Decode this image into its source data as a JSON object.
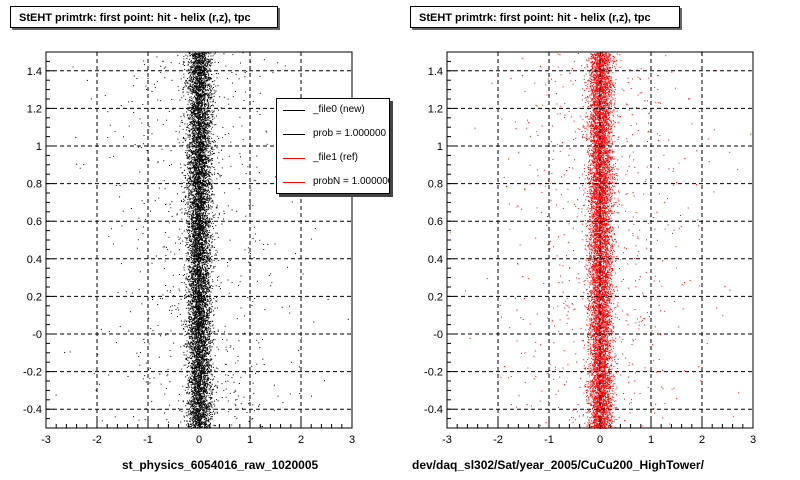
{
  "colors": {
    "new": "#000000",
    "ref": "#ff0000",
    "grid": "#000000"
  },
  "chart_data": [
    {
      "type": "scatter",
      "title": "StEHT primtrk: first point: hit - helix (r,z), tpc",
      "xlabel": "st_physics_6054016_raw_1020005",
      "ylabel": "",
      "xlim": [
        -3,
        3
      ],
      "ylim": [
        -0.5,
        1.5
      ],
      "x_ticks": [
        "-3",
        "-2",
        "-1",
        "0",
        "1",
        "2",
        "3"
      ],
      "y_ticks": [
        "-0.4",
        "-0.2",
        "-0",
        "0.2",
        "0.4",
        "0.6",
        "0.8",
        "1",
        "1.2",
        "1.4"
      ],
      "grid": true,
      "marker_color": "#000000",
      "distribution": {
        "x_center": 0.0,
        "core_sigma": 0.12,
        "tail_sigma": 1.0,
        "y_uniform": [
          -0.5,
          1.5
        ]
      },
      "legend": {
        "placement": "top-right",
        "entries": [
          {
            "label": "_file0 (new)",
            "color": "#000000"
          },
          {
            "label": "prob = 1.000000",
            "color": "#000000"
          },
          {
            "label": "_file1 (ref)",
            "color": "#ff0000"
          },
          {
            "label": "probN = 1.000000",
            "color": "#ff0000"
          }
        ]
      }
    },
    {
      "type": "scatter",
      "title": "StEHT primtrk: first point: hit - helix (r,z), tpc",
      "xlabel": "dev/daq_sl302/Sat/year_2005/CuCu200_HighTower/",
      "ylabel": "",
      "xlim": [
        -3,
        3
      ],
      "ylim": [
        -0.5,
        1.5
      ],
      "x_ticks": [
        "-3",
        "-2",
        "-1",
        "0",
        "1",
        "2",
        "3"
      ],
      "y_ticks": [
        "-0.4",
        "-0.2",
        "-0",
        "0.2",
        "0.4",
        "0.6",
        "0.8",
        "1",
        "1.2",
        "1.4"
      ],
      "grid": true,
      "marker_color": "#ff0000",
      "distribution": {
        "x_center": 0.0,
        "core_sigma": 0.12,
        "tail_sigma": 1.0,
        "y_uniform": [
          -0.5,
          1.5
        ]
      }
    }
  ]
}
